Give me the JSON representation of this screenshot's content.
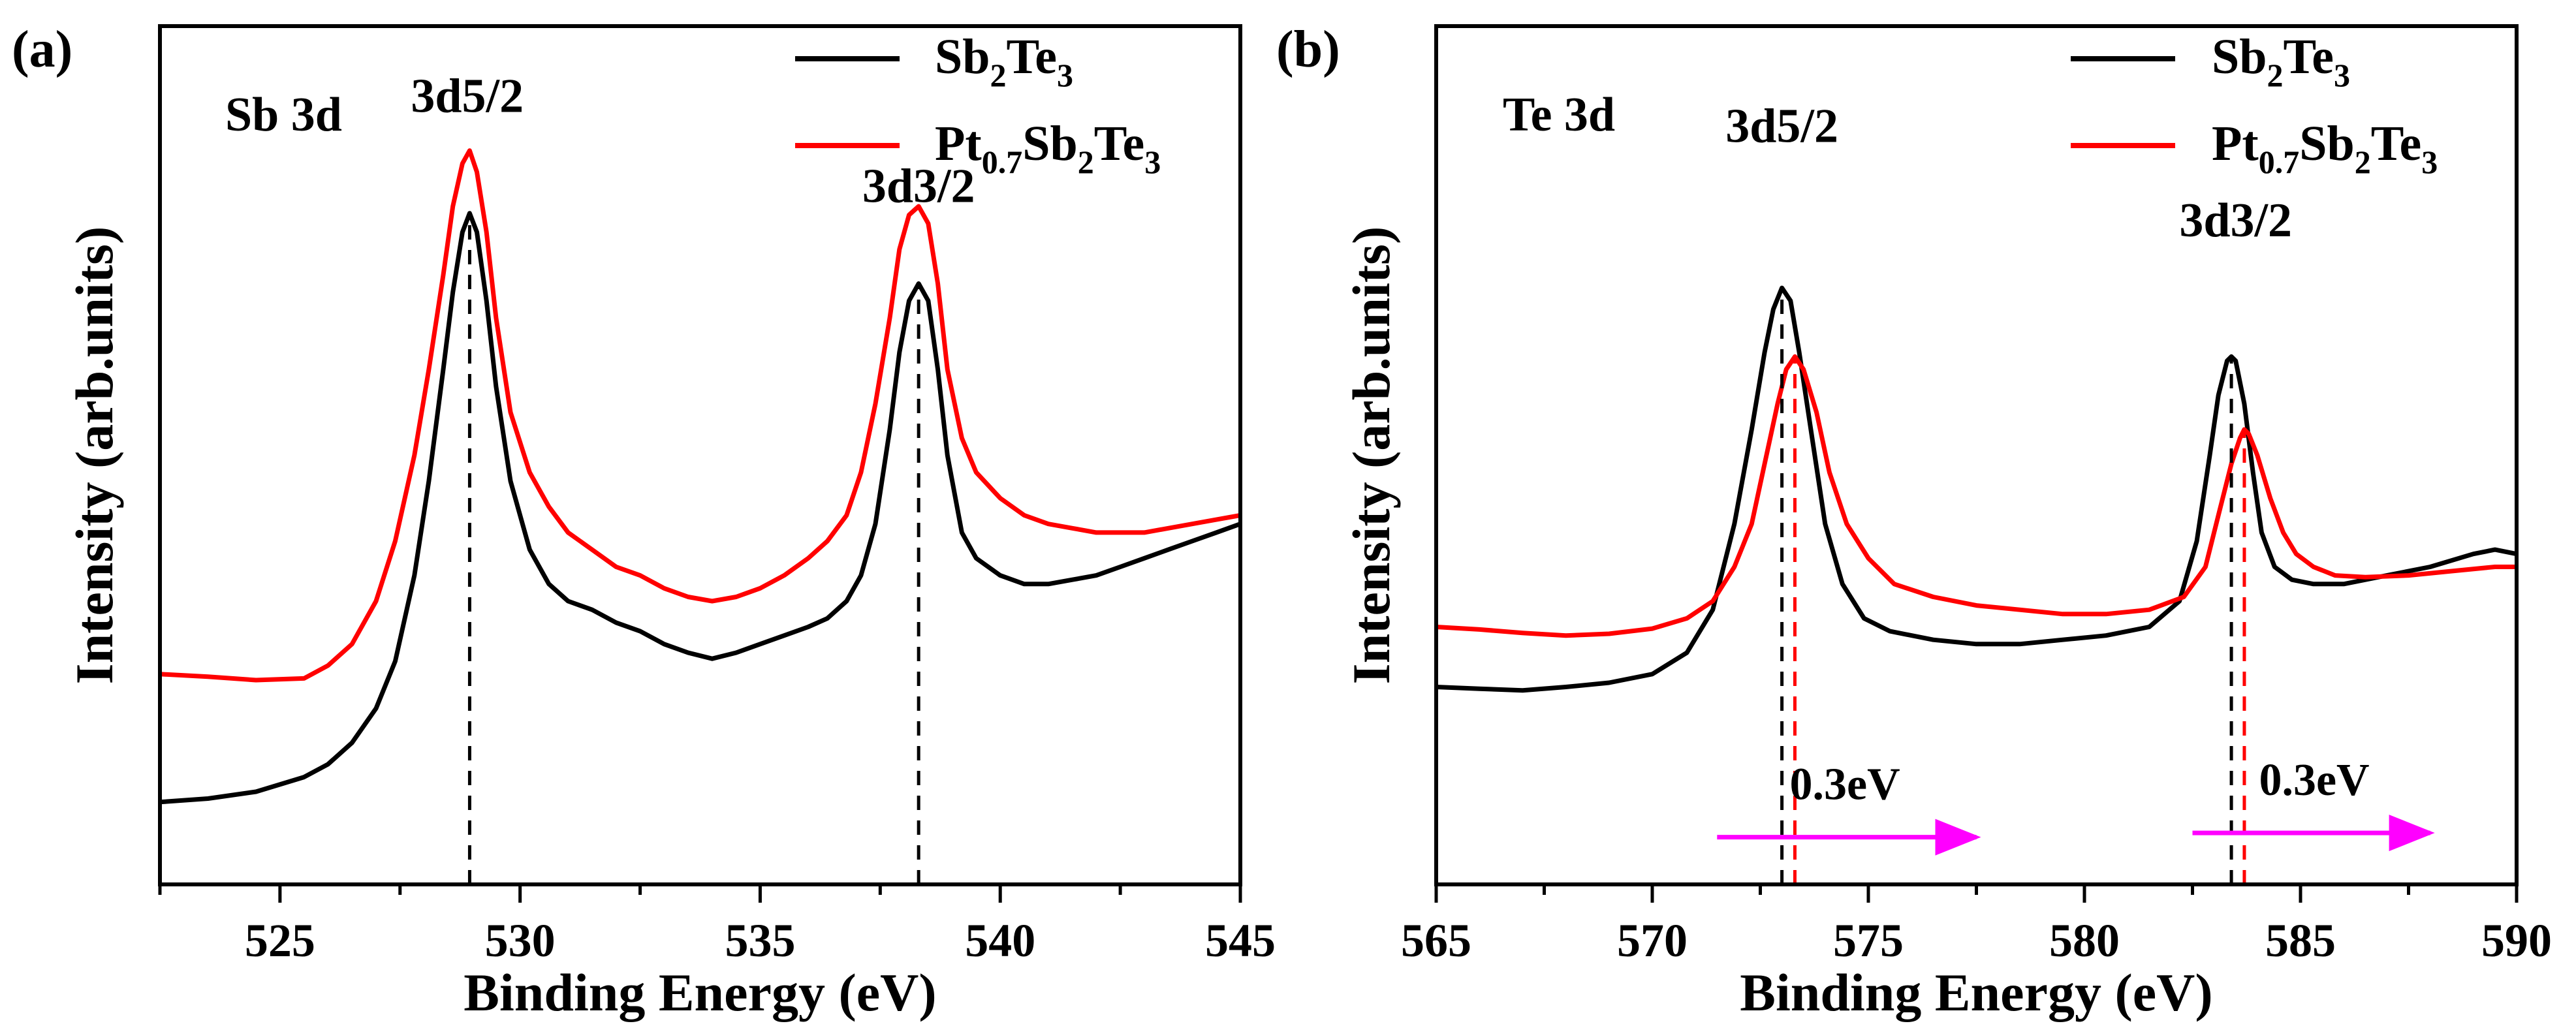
{
  "figure": {
    "colors": {
      "pristine": "#000000",
      "doped": "#ff0000",
      "arrow": "#ff00ff",
      "axis": "#000000"
    },
    "legend": {
      "sb2te3": {
        "p1": "Sb",
        "s1": "2",
        "p2": "Te",
        "s2": "3"
      },
      "pt": {
        "p1": "Pt",
        "s1": "0.7",
        "p2": "Sb",
        "s2": "2",
        "p3": "Te",
        "s3": "3"
      }
    }
  },
  "chart_data": [
    {
      "type": "line",
      "panel_label": "(a)",
      "region_label": "Sb 3d",
      "xlabel": "Binding Energy (eV)",
      "ylabel": "Intensity (arb.units)",
      "xlim": [
        522.5,
        545
      ],
      "xticks": [
        525,
        530,
        535,
        540,
        545
      ],
      "ylim": [
        0,
        1
      ],
      "yticks_shown": false,
      "peak_labels": [
        {
          "text": "3d5/2",
          "x": 528.9,
          "y": 0.9
        },
        {
          "text": "3d3/2",
          "x": 538.3,
          "y": 0.795
        }
      ],
      "reference_lines": [
        {
          "x": 528.95,
          "y_top": 0.78,
          "series": "Sb2Te3"
        },
        {
          "x": 538.3,
          "y_top": 0.7,
          "series": "Sb2Te3"
        }
      ],
      "series": [
        {
          "name": "Sb2Te3",
          "color": "#000000",
          "x": [
            522.5,
            523.5,
            524.5,
            525.5,
            526.0,
            526.5,
            527.0,
            527.4,
            527.8,
            528.1,
            528.4,
            528.6,
            528.8,
            528.95,
            529.1,
            529.3,
            529.5,
            529.8,
            530.2,
            530.6,
            531.0,
            531.5,
            532.0,
            532.5,
            533.0,
            533.5,
            534.0,
            534.5,
            535.0,
            535.5,
            536.0,
            536.4,
            536.8,
            537.1,
            537.4,
            537.7,
            537.9,
            538.1,
            538.3,
            538.5,
            538.7,
            538.9,
            539.2,
            539.5,
            540.0,
            540.5,
            541.0,
            541.5,
            542.0,
            542.5,
            543.0,
            543.5,
            544.0,
            544.5,
            545.0
          ],
          "y": [
            0.096,
            0.1,
            0.108,
            0.125,
            0.14,
            0.165,
            0.205,
            0.26,
            0.36,
            0.47,
            0.6,
            0.69,
            0.76,
            0.782,
            0.76,
            0.68,
            0.58,
            0.47,
            0.39,
            0.35,
            0.33,
            0.32,
            0.305,
            0.295,
            0.28,
            0.27,
            0.263,
            0.27,
            0.28,
            0.29,
            0.3,
            0.31,
            0.33,
            0.36,
            0.42,
            0.53,
            0.62,
            0.68,
            0.7,
            0.68,
            0.6,
            0.5,
            0.41,
            0.38,
            0.36,
            0.35,
            0.35,
            0.355,
            0.36,
            0.37,
            0.38,
            0.39,
            0.4,
            0.41,
            0.42
          ]
        },
        {
          "name": "Pt0.7Sb2Te3",
          "color": "#ff0000",
          "x": [
            522.5,
            523.5,
            524.5,
            525.5,
            526.0,
            526.5,
            527.0,
            527.4,
            527.8,
            528.1,
            528.4,
            528.6,
            528.8,
            528.95,
            529.1,
            529.3,
            529.5,
            529.8,
            530.2,
            530.6,
            531.0,
            531.5,
            532.0,
            532.5,
            533.0,
            533.5,
            534.0,
            534.5,
            535.0,
            535.5,
            536.0,
            536.4,
            536.8,
            537.1,
            537.4,
            537.7,
            537.9,
            538.1,
            538.3,
            538.5,
            538.7,
            538.9,
            539.2,
            539.5,
            540.0,
            540.5,
            541.0,
            541.5,
            542.0,
            542.5,
            543.0,
            543.5,
            544.0,
            544.5,
            545.0
          ],
          "y": [
            0.245,
            0.242,
            0.238,
            0.24,
            0.255,
            0.28,
            0.33,
            0.4,
            0.5,
            0.6,
            0.71,
            0.79,
            0.84,
            0.855,
            0.83,
            0.76,
            0.66,
            0.55,
            0.48,
            0.44,
            0.41,
            0.39,
            0.37,
            0.36,
            0.345,
            0.335,
            0.33,
            0.335,
            0.345,
            0.36,
            0.38,
            0.4,
            0.43,
            0.48,
            0.56,
            0.66,
            0.74,
            0.78,
            0.79,
            0.77,
            0.7,
            0.6,
            0.52,
            0.48,
            0.45,
            0.43,
            0.42,
            0.415,
            0.41,
            0.41,
            0.41,
            0.415,
            0.42,
            0.425,
            0.43
          ]
        }
      ]
    },
    {
      "type": "line",
      "panel_label": "(b)",
      "region_label": "Te 3d",
      "xlabel": "Binding Energy (eV)",
      "ylabel": "Intensity (arb.units)",
      "xlim": [
        565,
        590
      ],
      "xticks": [
        565,
        570,
        575,
        580,
        585,
        590
      ],
      "ylim": [
        0,
        1
      ],
      "yticks_shown": false,
      "peak_labels": [
        {
          "text": "3d5/2",
          "x": 573.0,
          "y": 0.865
        },
        {
          "text": "3d3/2",
          "x": 583.5,
          "y": 0.755
        }
      ],
      "reference_lines": [
        {
          "x": 573.0,
          "y_top": 0.695,
          "series": "Sb2Te3"
        },
        {
          "x": 573.3,
          "y_top": 0.615,
          "series": "Pt0.7Sb2Te3"
        },
        {
          "x": 583.4,
          "y_top": 0.615,
          "series": "Sb2Te3"
        },
        {
          "x": 583.7,
          "y_top": 0.53,
          "series": "Pt0.7Sb2Te3"
        }
      ],
      "shift_annotations": [
        {
          "text": "0.3eV",
          "arrow_x_start": 571.5,
          "arrow_x_end": 577.5,
          "y": 0.055
        },
        {
          "text": "0.3eV",
          "arrow_x_start": 582.5,
          "arrow_x_end": 588.0,
          "y": 0.06
        }
      ],
      "series": [
        {
          "name": "Sb2Te3",
          "color": "#000000",
          "x": [
            565.0,
            566.0,
            567.0,
            568.0,
            569.0,
            570.0,
            570.8,
            571.4,
            571.9,
            572.3,
            572.6,
            572.8,
            573.0,
            573.2,
            573.4,
            573.7,
            574.0,
            574.4,
            574.9,
            575.5,
            576.5,
            577.5,
            578.5,
            579.5,
            580.5,
            581.5,
            582.2,
            582.6,
            582.9,
            583.1,
            583.3,
            583.4,
            583.5,
            583.7,
            583.9,
            584.1,
            584.4,
            584.8,
            585.3,
            586.0,
            587.0,
            588.0,
            589.0,
            589.5,
            590.0
          ],
          "y": [
            0.23,
            0.228,
            0.226,
            0.23,
            0.235,
            0.245,
            0.27,
            0.32,
            0.42,
            0.53,
            0.62,
            0.67,
            0.695,
            0.68,
            0.62,
            0.52,
            0.42,
            0.35,
            0.31,
            0.295,
            0.285,
            0.28,
            0.28,
            0.285,
            0.29,
            0.3,
            0.33,
            0.4,
            0.5,
            0.57,
            0.61,
            0.615,
            0.61,
            0.56,
            0.48,
            0.41,
            0.37,
            0.355,
            0.35,
            0.35,
            0.36,
            0.37,
            0.385,
            0.39,
            0.385
          ]
        },
        {
          "name": "Pt0.7Sb2Te3",
          "color": "#ff0000",
          "x": [
            565.0,
            566.0,
            567.0,
            568.0,
            569.0,
            570.0,
            570.8,
            571.4,
            571.9,
            572.3,
            572.6,
            572.9,
            573.1,
            573.3,
            573.5,
            573.8,
            574.1,
            574.5,
            575.0,
            575.6,
            576.5,
            577.5,
            578.5,
            579.5,
            580.5,
            581.5,
            582.3,
            582.8,
            583.1,
            583.4,
            583.6,
            583.7,
            583.8,
            584.0,
            584.3,
            584.6,
            584.9,
            585.3,
            585.8,
            586.5,
            587.5,
            588.5,
            589.5,
            590.0
          ],
          "y": [
            0.3,
            0.297,
            0.293,
            0.29,
            0.292,
            0.298,
            0.31,
            0.33,
            0.37,
            0.42,
            0.49,
            0.56,
            0.6,
            0.615,
            0.6,
            0.55,
            0.48,
            0.42,
            0.38,
            0.35,
            0.335,
            0.325,
            0.32,
            0.315,
            0.315,
            0.32,
            0.335,
            0.37,
            0.43,
            0.49,
            0.52,
            0.53,
            0.525,
            0.5,
            0.45,
            0.41,
            0.385,
            0.37,
            0.36,
            0.358,
            0.36,
            0.365,
            0.37,
            0.37
          ]
        }
      ]
    }
  ]
}
